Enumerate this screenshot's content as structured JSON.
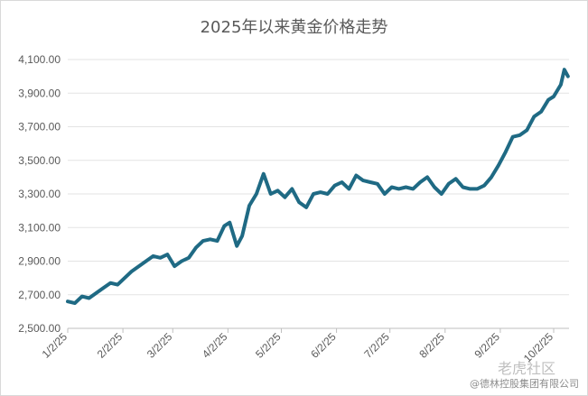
{
  "chart_data": {
    "type": "line",
    "title": "2025年以来黄金价格走势",
    "ylim": [
      2500,
      4200
    ],
    "yticks": [
      "2,500.00",
      "2,700.00",
      "2,900.00",
      "3,100.00",
      "3,300.00",
      "3,500.00",
      "3,700.00",
      "3,900.00",
      "4,100.00"
    ],
    "ytick_values": [
      2500,
      2700,
      2900,
      3100,
      3300,
      3500,
      3700,
      3900,
      4100
    ],
    "xticks": [
      "1/2/25",
      "2/2/25",
      "3/2/25",
      "4/2/25",
      "5/2/25",
      "6/2/25",
      "7/2/25",
      "8/2/25",
      "9/2/25",
      "10/2/25"
    ],
    "grid": "horizontal",
    "line_color": "#1f6a84",
    "series": [
      {
        "x": [
          "2025-01-02",
          "2025-01-06",
          "2025-01-10",
          "2025-01-14",
          "2025-01-18",
          "2025-01-22",
          "2025-01-26",
          "2025-01-30",
          "2025-02-03",
          "2025-02-07",
          "2025-02-11",
          "2025-02-15",
          "2025-02-19",
          "2025-02-23",
          "2025-02-27",
          "2025-03-03",
          "2025-03-07",
          "2025-03-11",
          "2025-03-15",
          "2025-03-19",
          "2025-03-23",
          "2025-03-27",
          "2025-03-31",
          "2025-04-03",
          "2025-04-07",
          "2025-04-10",
          "2025-04-14",
          "2025-04-18",
          "2025-04-22",
          "2025-04-26",
          "2025-04-30",
          "2025-05-04",
          "2025-05-08",
          "2025-05-12",
          "2025-05-16",
          "2025-05-20",
          "2025-05-24",
          "2025-05-28",
          "2025-06-01",
          "2025-06-05",
          "2025-06-09",
          "2025-06-13",
          "2025-06-17",
          "2025-06-21",
          "2025-06-25",
          "2025-06-29",
          "2025-07-03",
          "2025-07-07",
          "2025-07-11",
          "2025-07-15",
          "2025-07-19",
          "2025-07-23",
          "2025-07-27",
          "2025-07-31",
          "2025-08-04",
          "2025-08-08",
          "2025-08-12",
          "2025-08-16",
          "2025-08-20",
          "2025-08-24",
          "2025-08-28",
          "2025-09-01",
          "2025-09-05",
          "2025-09-09",
          "2025-09-13",
          "2025-09-17",
          "2025-09-21",
          "2025-09-25",
          "2025-09-29",
          "2025-10-02",
          "2025-10-06",
          "2025-10-08",
          "2025-10-10"
        ],
        "y": [
          2660,
          2650,
          2690,
          2680,
          2710,
          2740,
          2770,
          2760,
          2800,
          2840,
          2870,
          2900,
          2930,
          2920,
          2940,
          2870,
          2900,
          2920,
          2980,
          3020,
          3030,
          3020,
          3110,
          3130,
          2990,
          3050,
          3230,
          3300,
          3420,
          3300,
          3320,
          3280,
          3330,
          3250,
          3220,
          3300,
          3310,
          3300,
          3350,
          3370,
          3330,
          3410,
          3380,
          3370,
          3360,
          3300,
          3340,
          3330,
          3340,
          3330,
          3370,
          3400,
          3340,
          3300,
          3360,
          3390,
          3340,
          3330,
          3330,
          3350,
          3400,
          3470,
          3550,
          3640,
          3650,
          3680,
          3760,
          3790,
          3860,
          3880,
          3950,
          4040,
          4000
        ]
      }
    ]
  },
  "watermark": {
    "main": "老虎社区",
    "credit": "@德林控股集团有限公司"
  }
}
